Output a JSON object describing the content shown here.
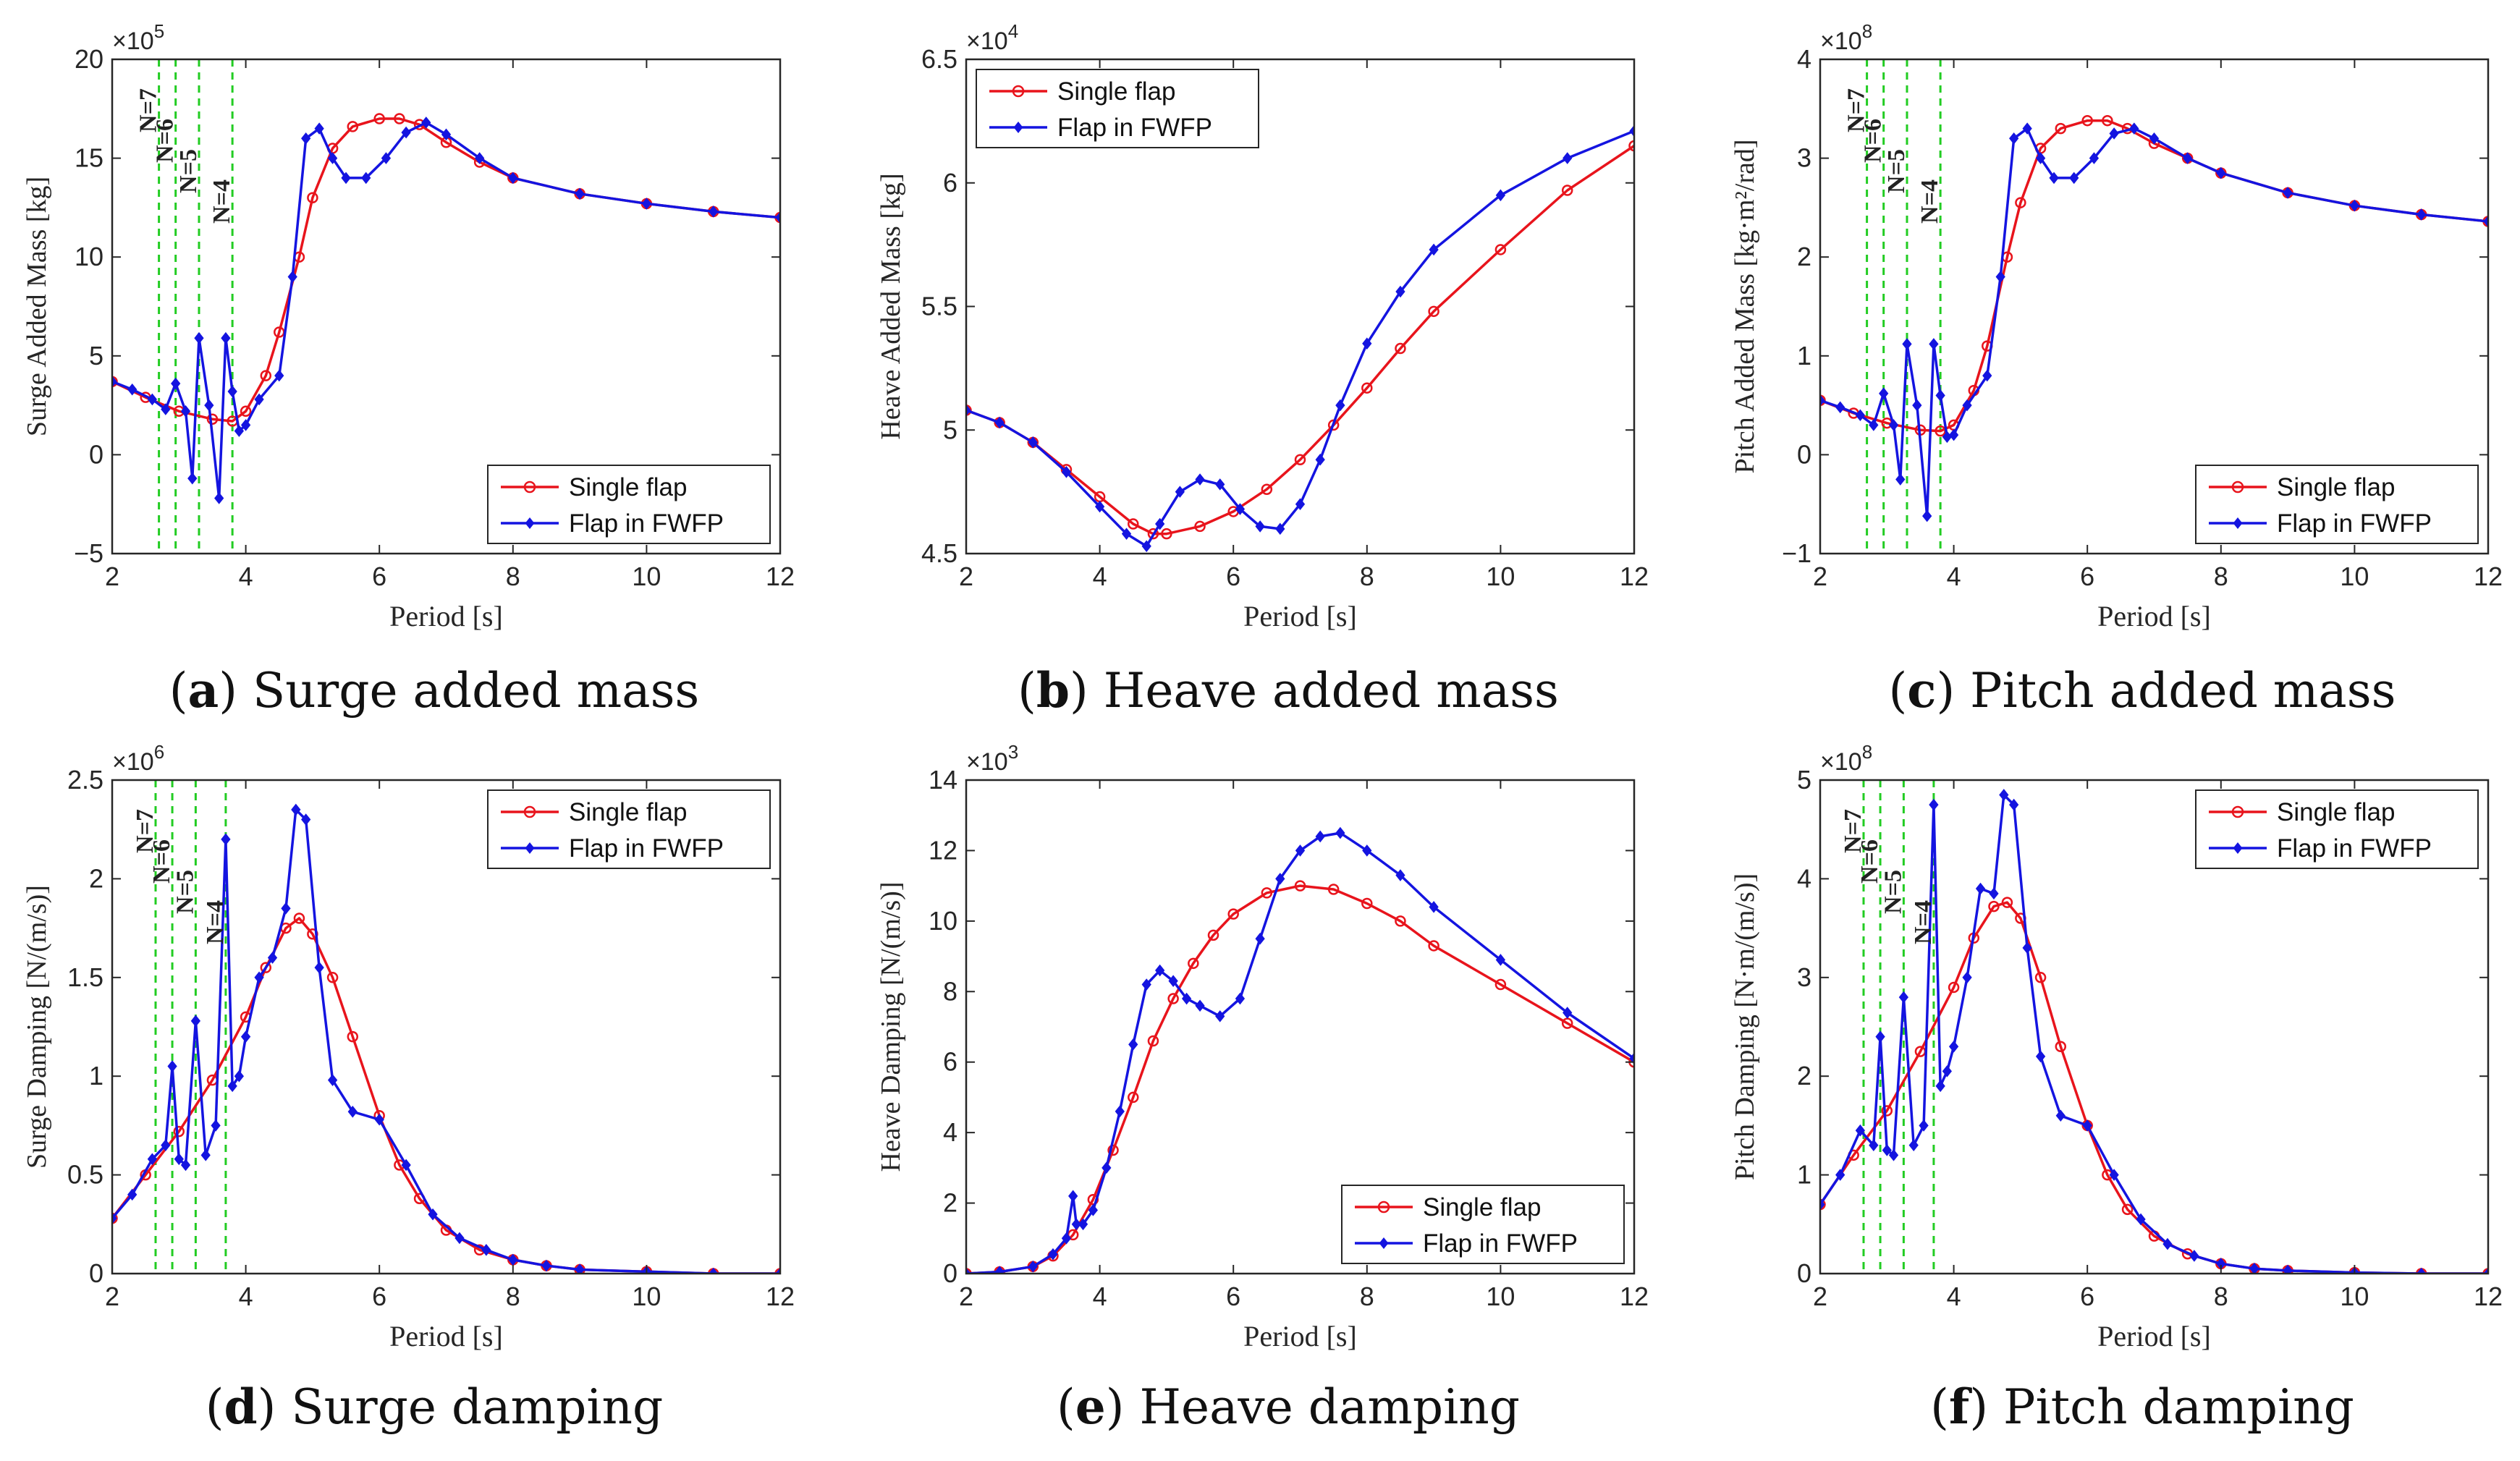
{
  "figure": {
    "captions": [
      {
        "letter": "a",
        "text": ") Surge added mass"
      },
      {
        "letter": "b",
        "text": ") Heave added mass"
      },
      {
        "letter": "c",
        "text": ") Pitch added mass"
      },
      {
        "letter": "d",
        "text": ") Surge damping"
      },
      {
        "letter": "e",
        "text": ") Heave damping"
      },
      {
        "letter": "f",
        "text": ") Pitch damping"
      }
    ],
    "colors": {
      "single": "#e8141c",
      "fwfp": "#1414e0",
      "mode_line": "#22cc22"
    }
  },
  "chart_data": [
    {
      "type": "line",
      "title": "Surge added mass",
      "xlabel": "Period [s]",
      "ylabel": "Surge Added Mass [kg]",
      "exponent_base": "×10",
      "exponent": "5",
      "xlim": [
        2,
        12
      ],
      "ylim": [
        -5,
        20
      ],
      "xticks": [
        2,
        4,
        6,
        8,
        10,
        12
      ],
      "yticks": [
        -5,
        0,
        5,
        10,
        15,
        20
      ],
      "ytick_labels": [
        "−5",
        "0",
        "5",
        "10",
        "15",
        "20"
      ],
      "legend_position": "bottom-right",
      "mode_lines": [
        {
          "label": "N=7",
          "x": 2.7
        },
        {
          "label": "N=6",
          "x": 2.95
        },
        {
          "label": "N=5",
          "x": 3.3
        },
        {
          "label": "N=4",
          "x": 3.8
        }
      ],
      "series": [
        {
          "name": "Single flap",
          "marker": "circle",
          "x": [
            2,
            2.5,
            3,
            3.5,
            3.8,
            4,
            4.3,
            4.5,
            4.8,
            5,
            5.3,
            5.6,
            6,
            6.3,
            6.6,
            7,
            7.5,
            8,
            9,
            10,
            11,
            12
          ],
          "y": [
            3.7,
            2.9,
            2.2,
            1.8,
            1.7,
            2.2,
            4.0,
            6.2,
            10.0,
            13.0,
            15.5,
            16.6,
            17.0,
            17.0,
            16.7,
            15.8,
            14.8,
            14.0,
            13.2,
            12.7,
            12.3,
            12.0
          ]
        },
        {
          "name": "Flap in FWFP",
          "marker": "diamond",
          "x": [
            2,
            2.3,
            2.6,
            2.8,
            2.95,
            3.1,
            3.2,
            3.3,
            3.45,
            3.6,
            3.7,
            3.8,
            3.9,
            4.0,
            4.2,
            4.5,
            4.7,
            4.9,
            5.1,
            5.3,
            5.5,
            5.8,
            6.1,
            6.4,
            6.7,
            7,
            7.5,
            8,
            9,
            10,
            11,
            12
          ],
          "y": [
            3.7,
            3.3,
            2.8,
            2.3,
            3.6,
            2.2,
            -1.2,
            5.9,
            2.5,
            -2.2,
            5.9,
            3.2,
            1.2,
            1.5,
            2.8,
            4.0,
            9.0,
            16.0,
            16.5,
            15.0,
            14.0,
            14.0,
            15.0,
            16.3,
            16.8,
            16.2,
            15.0,
            14.0,
            13.2,
            12.7,
            12.3,
            12.0
          ]
        }
      ]
    },
    {
      "type": "line",
      "title": "Heave added mass",
      "xlabel": "Period [s]",
      "ylabel": "Heave Added Mass [kg]",
      "exponent_base": "×10",
      "exponent": "4",
      "xlim": [
        2,
        12
      ],
      "ylim": [
        4.5,
        6.5
      ],
      "xticks": [
        2,
        4,
        6,
        8,
        10,
        12
      ],
      "yticks": [
        4.5,
        5,
        5.5,
        6,
        6.5
      ],
      "ytick_labels": [
        "4.5",
        "5",
        "5.5",
        "6",
        "6.5"
      ],
      "legend_position": "top-left",
      "mode_lines": [],
      "series": [
        {
          "name": "Single flap",
          "marker": "circle",
          "x": [
            2,
            2.5,
            3,
            3.5,
            4,
            4.5,
            4.8,
            5,
            5.5,
            6,
            6.5,
            7,
            7.5,
            8,
            8.5,
            9,
            10,
            11,
            12
          ],
          "y": [
            5.08,
            5.03,
            4.95,
            4.84,
            4.73,
            4.62,
            4.58,
            4.58,
            4.61,
            4.67,
            4.76,
            4.88,
            5.02,
            5.17,
            5.33,
            5.48,
            5.73,
            5.97,
            6.15
          ]
        },
        {
          "name": "Flap in FWFP",
          "marker": "diamond",
          "x": [
            2,
            2.5,
            3,
            3.5,
            4,
            4.4,
            4.7,
            4.9,
            5.2,
            5.5,
            5.8,
            6.1,
            6.4,
            6.7,
            7,
            7.3,
            7.6,
            8,
            8.5,
            9,
            10,
            11,
            12
          ],
          "y": [
            5.08,
            5.03,
            4.95,
            4.83,
            4.69,
            4.58,
            4.53,
            4.62,
            4.75,
            4.8,
            4.78,
            4.68,
            4.61,
            4.6,
            4.7,
            4.88,
            5.1,
            5.35,
            5.56,
            5.73,
            5.95,
            6.1,
            6.21
          ]
        }
      ]
    },
    {
      "type": "line",
      "title": "Pitch added mass",
      "xlabel": "Period [s]",
      "ylabel": "Pitch Added Mass [kg·m²/rad]",
      "exponent_base": "×10",
      "exponent": "8",
      "xlim": [
        2,
        12
      ],
      "ylim": [
        -1,
        4
      ],
      "xticks": [
        2,
        4,
        6,
        8,
        10,
        12
      ],
      "yticks": [
        -1,
        0,
        1,
        2,
        3,
        4
      ],
      "ytick_labels": [
        "−1",
        "0",
        "1",
        "2",
        "3",
        "4"
      ],
      "legend_position": "bottom-right",
      "mode_lines": [
        {
          "label": "N=7",
          "x": 2.7
        },
        {
          "label": "N=6",
          "x": 2.95
        },
        {
          "label": "N=5",
          "x": 3.3
        },
        {
          "label": "N=4",
          "x": 3.8
        }
      ],
      "series": [
        {
          "name": "Single flap",
          "marker": "circle",
          "x": [
            2,
            2.5,
            3,
            3.5,
            3.8,
            4,
            4.3,
            4.5,
            4.8,
            5,
            5.3,
            5.6,
            6,
            6.3,
            6.6,
            7,
            7.5,
            8,
            9,
            10,
            11,
            12
          ],
          "y": [
            0.55,
            0.42,
            0.32,
            0.25,
            0.24,
            0.3,
            0.65,
            1.1,
            2.0,
            2.55,
            3.1,
            3.3,
            3.38,
            3.38,
            3.3,
            3.15,
            3.0,
            2.85,
            2.65,
            2.52,
            2.43,
            2.36
          ]
        },
        {
          "name": "Flap in FWFP",
          "marker": "diamond",
          "x": [
            2,
            2.3,
            2.6,
            2.8,
            2.95,
            3.1,
            3.2,
            3.3,
            3.45,
            3.6,
            3.7,
            3.8,
            3.9,
            4.0,
            4.2,
            4.5,
            4.7,
            4.9,
            5.1,
            5.3,
            5.5,
            5.8,
            6.1,
            6.4,
            6.7,
            7,
            7.5,
            8,
            9,
            10,
            11,
            12
          ],
          "y": [
            0.55,
            0.48,
            0.4,
            0.3,
            0.62,
            0.3,
            -0.25,
            1.12,
            0.5,
            -0.62,
            1.12,
            0.6,
            0.18,
            0.2,
            0.5,
            0.8,
            1.8,
            3.2,
            3.3,
            3.0,
            2.8,
            2.8,
            3.0,
            3.25,
            3.3,
            3.2,
            3.0,
            2.85,
            2.65,
            2.52,
            2.43,
            2.36
          ]
        }
      ]
    },
    {
      "type": "line",
      "title": "Surge damping",
      "xlabel": "Period [s]",
      "ylabel": "Surge Damping [N/(m/s)]",
      "exponent_base": "×10",
      "exponent": "6",
      "xlim": [
        2,
        12
      ],
      "ylim": [
        0,
        2.5
      ],
      "xticks": [
        2,
        4,
        6,
        8,
        10,
        12
      ],
      "yticks": [
        0,
        0.5,
        1,
        1.5,
        2,
        2.5
      ],
      "ytick_labels": [
        "0",
        "0.5",
        "1",
        "1.5",
        "2",
        "2.5"
      ],
      "legend_position": "top-right",
      "mode_lines": [
        {
          "label": "N=7",
          "x": 2.65
        },
        {
          "label": "N=6",
          "x": 2.9
        },
        {
          "label": "N=5",
          "x": 3.25
        },
        {
          "label": "N=4",
          "x": 3.7
        }
      ],
      "series": [
        {
          "name": "Single flap",
          "marker": "circle",
          "x": [
            2,
            2.5,
            3,
            3.5,
            4,
            4.3,
            4.6,
            4.8,
            5,
            5.3,
            5.6,
            6,
            6.3,
            6.6,
            7,
            7.5,
            8,
            8.5,
            9,
            10,
            11,
            12
          ],
          "y": [
            0.28,
            0.5,
            0.72,
            0.98,
            1.3,
            1.55,
            1.75,
            1.8,
            1.72,
            1.5,
            1.2,
            0.8,
            0.55,
            0.38,
            0.22,
            0.12,
            0.07,
            0.04,
            0.02,
            0.01,
            0.0,
            0.0
          ]
        },
        {
          "name": "Flap in FWFP",
          "marker": "diamond",
          "x": [
            2,
            2.3,
            2.6,
            2.8,
            2.9,
            3.0,
            3.1,
            3.25,
            3.4,
            3.55,
            3.7,
            3.8,
            3.9,
            4.0,
            4.2,
            4.4,
            4.6,
            4.75,
            4.9,
            5.1,
            5.3,
            5.6,
            6,
            6.4,
            6.8,
            7.2,
            7.6,
            8,
            8.5,
            9,
            10,
            11,
            12
          ],
          "y": [
            0.28,
            0.4,
            0.58,
            0.65,
            1.05,
            0.58,
            0.55,
            1.28,
            0.6,
            0.75,
            2.2,
            0.95,
            1.0,
            1.2,
            1.5,
            1.6,
            1.85,
            2.35,
            2.3,
            1.55,
            0.98,
            0.82,
            0.78,
            0.55,
            0.3,
            0.18,
            0.12,
            0.07,
            0.04,
            0.02,
            0.01,
            0.0,
            0.0
          ]
        }
      ]
    },
    {
      "type": "line",
      "title": "Heave damping",
      "xlabel": "Period [s]",
      "ylabel": "Heave Damping [N/(m/s)]",
      "exponent_base": "×10",
      "exponent": "3",
      "xlim": [
        2,
        12
      ],
      "ylim": [
        0,
        14
      ],
      "xticks": [
        2,
        4,
        6,
        8,
        10,
        12
      ],
      "yticks": [
        0,
        2,
        4,
        6,
        8,
        10,
        12,
        14
      ],
      "ytick_labels": [
        "0",
        "2",
        "4",
        "6",
        "8",
        "10",
        "12",
        "14"
      ],
      "legend_position": "bottom-right",
      "mode_lines": [],
      "series": [
        {
          "name": "Single flap",
          "marker": "circle",
          "x": [
            2,
            2.5,
            3,
            3.3,
            3.6,
            3.9,
            4.2,
            4.5,
            4.8,
            5.1,
            5.4,
            5.7,
            6,
            6.5,
            7,
            7.5,
            8,
            8.5,
            9,
            10,
            11,
            12
          ],
          "y": [
            0,
            0.05,
            0.2,
            0.5,
            1.1,
            2.1,
            3.5,
            5.0,
            6.6,
            7.8,
            8.8,
            9.6,
            10.2,
            10.8,
            11.0,
            10.9,
            10.5,
            10.0,
            9.3,
            8.2,
            7.1,
            6.0
          ]
        },
        {
          "name": "Flap in FWFP",
          "marker": "diamond",
          "x": [
            2,
            2.5,
            3,
            3.3,
            3.5,
            3.6,
            3.65,
            3.75,
            3.9,
            4.1,
            4.3,
            4.5,
            4.7,
            4.9,
            5.1,
            5.3,
            5.5,
            5.8,
            6.1,
            6.4,
            6.7,
            7,
            7.3,
            7.6,
            8,
            8.5,
            9,
            10,
            11,
            12
          ],
          "y": [
            0,
            0.05,
            0.2,
            0.55,
            1.0,
            2.2,
            1.4,
            1.4,
            1.8,
            3.0,
            4.6,
            6.5,
            8.2,
            8.6,
            8.3,
            7.8,
            7.6,
            7.3,
            7.8,
            9.5,
            11.2,
            12.0,
            12.4,
            12.5,
            12.0,
            11.3,
            10.4,
            8.9,
            7.4,
            6.1
          ]
        }
      ]
    },
    {
      "type": "line",
      "title": "Pitch damping",
      "xlabel": "Period [s]",
      "ylabel": "Pitch Damping [N·m/(m/s)]",
      "exponent_base": "×10",
      "exponent": "8",
      "xlim": [
        2,
        12
      ],
      "ylim": [
        0,
        5
      ],
      "xticks": [
        2,
        4,
        6,
        8,
        10,
        12
      ],
      "yticks": [
        0,
        1,
        2,
        3,
        4,
        5
      ],
      "ytick_labels": [
        "0",
        "1",
        "2",
        "3",
        "4",
        "5"
      ],
      "legend_position": "top-right",
      "mode_lines": [
        {
          "label": "N=7",
          "x": 2.65
        },
        {
          "label": "N=6",
          "x": 2.9
        },
        {
          "label": "N=5",
          "x": 3.25
        },
        {
          "label": "N=4",
          "x": 3.7
        }
      ],
      "series": [
        {
          "name": "Single flap",
          "marker": "circle",
          "x": [
            2,
            2.5,
            3,
            3.5,
            4,
            4.3,
            4.6,
            4.8,
            5,
            5.3,
            5.6,
            6,
            6.3,
            6.6,
            7,
            7.5,
            8,
            8.5,
            9,
            10,
            11,
            12
          ],
          "y": [
            0.7,
            1.2,
            1.65,
            2.25,
            2.9,
            3.4,
            3.72,
            3.76,
            3.6,
            3.0,
            2.3,
            1.5,
            1.0,
            0.65,
            0.38,
            0.2,
            0.1,
            0.05,
            0.03,
            0.01,
            0.0,
            0.0
          ]
        },
        {
          "name": "Flap in FWFP",
          "marker": "diamond",
          "x": [
            2,
            2.3,
            2.6,
            2.8,
            2.9,
            3.0,
            3.1,
            3.25,
            3.4,
            3.55,
            3.7,
            3.8,
            3.9,
            4.0,
            4.2,
            4.4,
            4.6,
            4.75,
            4.9,
            5.1,
            5.3,
            5.6,
            6,
            6.4,
            6.8,
            7.2,
            7.6,
            8,
            8.5,
            9,
            10,
            11,
            12
          ],
          "y": [
            0.7,
            1.0,
            1.45,
            1.3,
            2.4,
            1.25,
            1.2,
            2.8,
            1.3,
            1.5,
            4.75,
            1.9,
            2.05,
            2.3,
            3.0,
            3.9,
            3.85,
            4.85,
            4.75,
            3.3,
            2.2,
            1.6,
            1.5,
            1.0,
            0.55,
            0.3,
            0.18,
            0.1,
            0.05,
            0.03,
            0.01,
            0.0,
            0.0
          ]
        }
      ]
    }
  ]
}
